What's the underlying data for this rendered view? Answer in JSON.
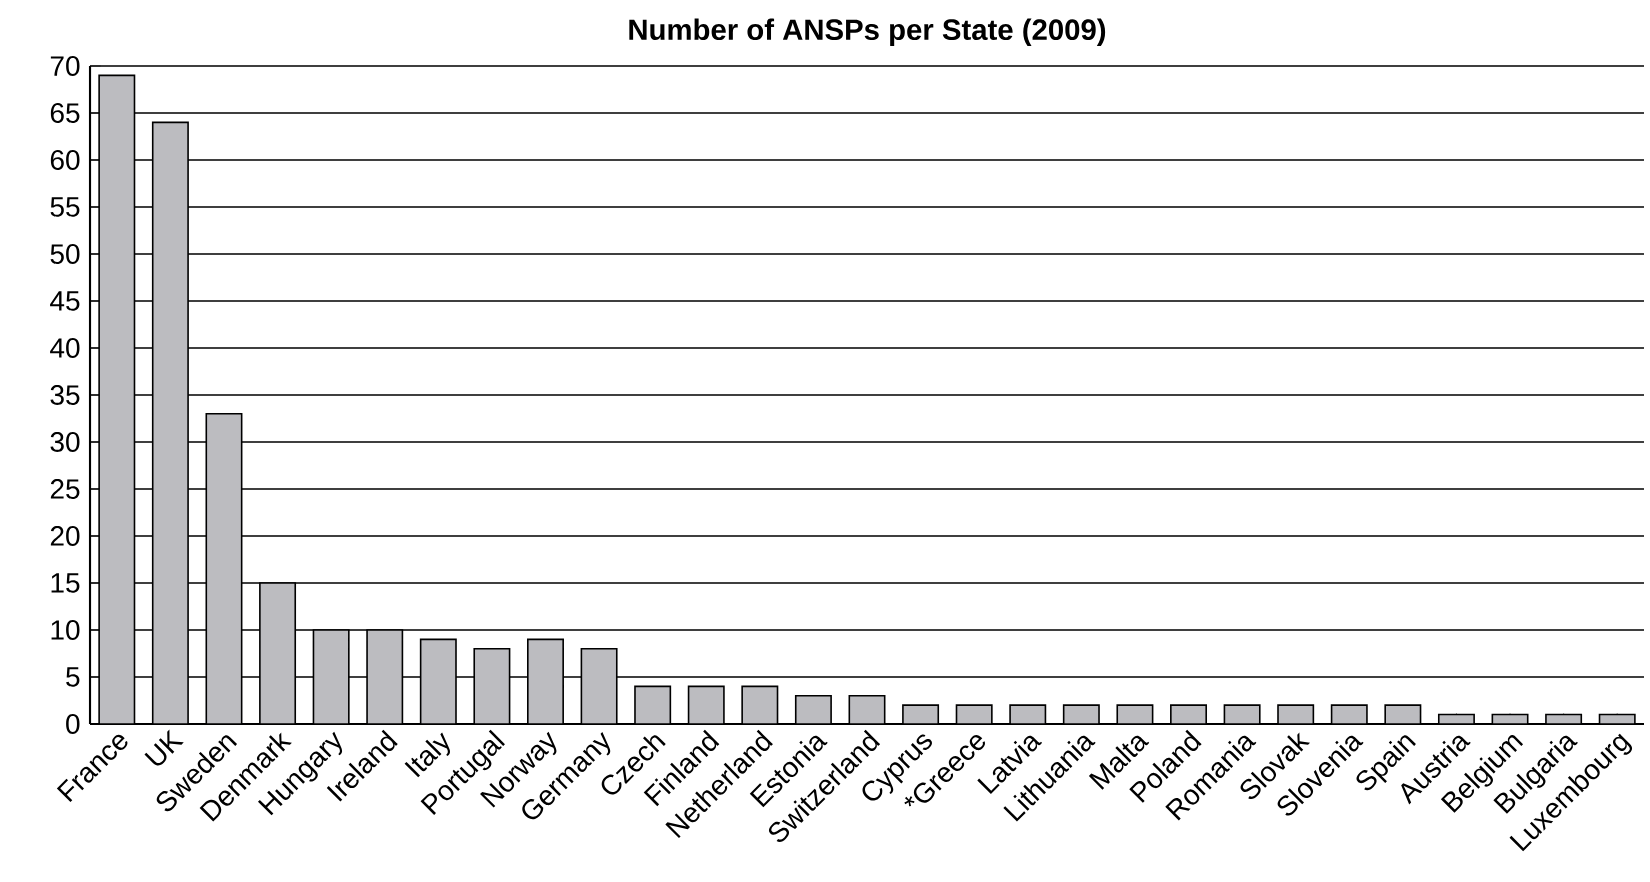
{
  "chart_data": {
    "type": "bar",
    "title": "Number of ANSPs per State (2009)",
    "categories": [
      "France",
      "UK",
      "Sweden",
      "Denmark",
      "Hungary",
      "Ireland",
      "Italy",
      "Portugal",
      "Norway",
      "Germany",
      "Czech",
      "Finland",
      "Netherland",
      "Estonia",
      "Switzerland",
      "Cyprus",
      "*Greece",
      "Latvia",
      "Lithuania",
      "Malta",
      "Poland",
      "Romania",
      "Slovak",
      "Slovenia",
      "Spain",
      "Austria",
      "Belgium",
      "Bulgaria",
      "Luxembourg"
    ],
    "values": [
      69,
      64,
      33,
      15,
      10,
      10,
      9,
      8,
      9,
      8,
      4,
      4,
      4,
      3,
      3,
      2,
      2,
      2,
      2,
      2,
      2,
      2,
      2,
      2,
      2,
      1,
      1,
      1,
      1
    ],
    "color": "#bcbcc0",
    "ylim": [
      0,
      70
    ],
    "yticks": [
      0,
      5,
      10,
      15,
      20,
      25,
      30,
      35,
      40,
      45,
      50,
      55,
      60,
      65,
      70
    ],
    "grid": "y"
  }
}
